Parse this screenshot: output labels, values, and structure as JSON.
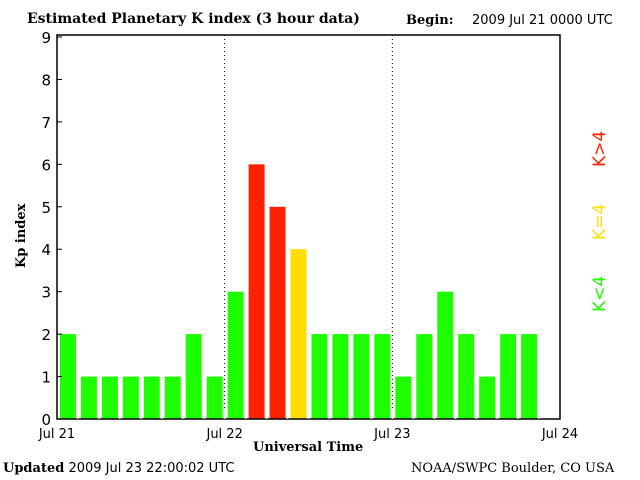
{
  "header": {
    "title": "Estimated Planetary K index (3 hour data)",
    "begin_label": "Begin:",
    "begin_value": "2009 Jul 21 0000 UTC"
  },
  "footer": {
    "updated_label": "Updated",
    "updated_value": "2009 Jul 23 22:00:02 UTC",
    "source": "NOAA/SWPC Boulder, CO USA"
  },
  "legend": [
    {
      "label": "K<4",
      "color": "#1eff00"
    },
    {
      "label": "K=4",
      "color": "#ffdd00"
    },
    {
      "label": "K>4",
      "color": "#ff2200"
    }
  ],
  "chart_data": {
    "type": "bar",
    "title": "Estimated Planetary K index (3 hour data)",
    "xlabel": "Universal Time",
    "ylabel": "Kp index",
    "ylim": [
      0,
      9
    ],
    "yticks": [
      "0",
      "1",
      "2",
      "3",
      "4",
      "5",
      "6",
      "7",
      "8",
      "9"
    ],
    "xticks": [
      "Jul 21",
      "Jul 22",
      "Jul 23",
      "Jul 24"
    ],
    "interval_hours": 3,
    "values": [
      2,
      1,
      1,
      1,
      1,
      1,
      2,
      1,
      3,
      6,
      5,
      4,
      2,
      2,
      2,
      2,
      1,
      2,
      3,
      2,
      1,
      2,
      2
    ],
    "colors": {
      "below4": "#1eff00",
      "equal4": "#ffdd00",
      "above4": "#ff2200"
    },
    "grid": "dotted vertical lines at day boundaries"
  }
}
